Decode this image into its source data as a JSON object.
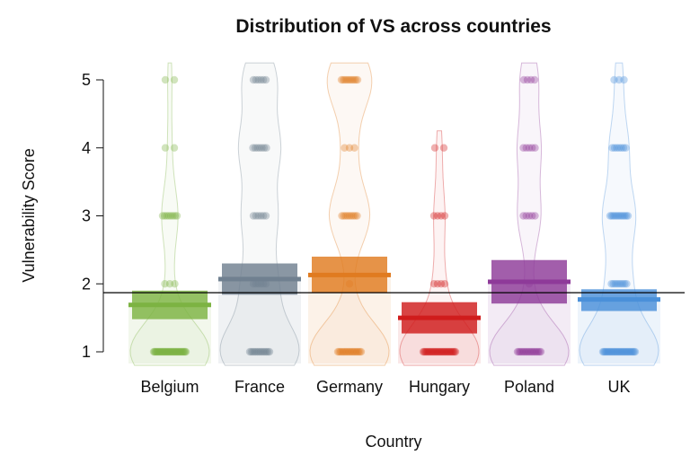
{
  "chart_data": {
    "type": "pirate",
    "title": "Distribution of VS across countries",
    "xlabel": "Country",
    "ylabel": "Vulnerability Score",
    "ylim": [
      0.85,
      5.0
    ],
    "yticks": [
      1,
      2,
      3,
      4,
      5
    ],
    "reference_line": 1.87,
    "series": [
      {
        "name": "Belgium",
        "color": "#7cb342",
        "mean": 1.69,
        "ci": [
          1.48,
          1.9
        ],
        "points": [
          {
            "y": 1,
            "count": 40
          },
          {
            "y": 2,
            "count": 3
          },
          {
            "y": 3,
            "count": 8
          },
          {
            "y": 4,
            "count": 2
          },
          {
            "y": 5,
            "count": 2
          }
        ]
      },
      {
        "name": "France",
        "color": "#708090",
        "mean": 2.07,
        "ci": [
          1.84,
          2.3
        ],
        "points": [
          {
            "y": 1,
            "count": 14
          },
          {
            "y": 2,
            "count": 6
          },
          {
            "y": 3,
            "count": 6
          },
          {
            "y": 4,
            "count": 7
          },
          {
            "y": 5,
            "count": 6
          }
        ]
      },
      {
        "name": "Germany",
        "color": "#e07b20",
        "mean": 2.13,
        "ci": [
          1.87,
          2.4
        ],
        "points": [
          {
            "y": 1,
            "count": 18
          },
          {
            "y": 2,
            "count": 1
          },
          {
            "y": 3,
            "count": 9
          },
          {
            "y": 4,
            "count": 3
          },
          {
            "y": 5,
            "count": 10
          }
        ]
      },
      {
        "name": "Hungary",
        "color": "#d01c1c",
        "mean": 1.5,
        "ci": [
          1.27,
          1.73
        ],
        "points": [
          {
            "y": 1,
            "count": 30
          },
          {
            "y": 2,
            "count": 4
          },
          {
            "y": 3,
            "count": 4
          },
          {
            "y": 4,
            "count": 2
          }
        ]
      },
      {
        "name": "Poland",
        "color": "#8e3a99",
        "mean": 2.03,
        "ci": [
          1.71,
          2.35
        ],
        "points": [
          {
            "y": 1,
            "count": 18
          },
          {
            "y": 2,
            "count": 1
          },
          {
            "y": 3,
            "count": 5
          },
          {
            "y": 4,
            "count": 5
          },
          {
            "y": 5,
            "count": 4
          }
        ]
      },
      {
        "name": "UK",
        "color": "#4a90d9",
        "mean": 1.77,
        "ci": [
          1.6,
          1.92
        ],
        "points": [
          {
            "y": 1,
            "count": 30
          },
          {
            "y": 2,
            "count": 9
          },
          {
            "y": 3,
            "count": 12
          },
          {
            "y": 4,
            "count": 7
          },
          {
            "y": 5,
            "count": 3
          }
        ]
      }
    ]
  }
}
